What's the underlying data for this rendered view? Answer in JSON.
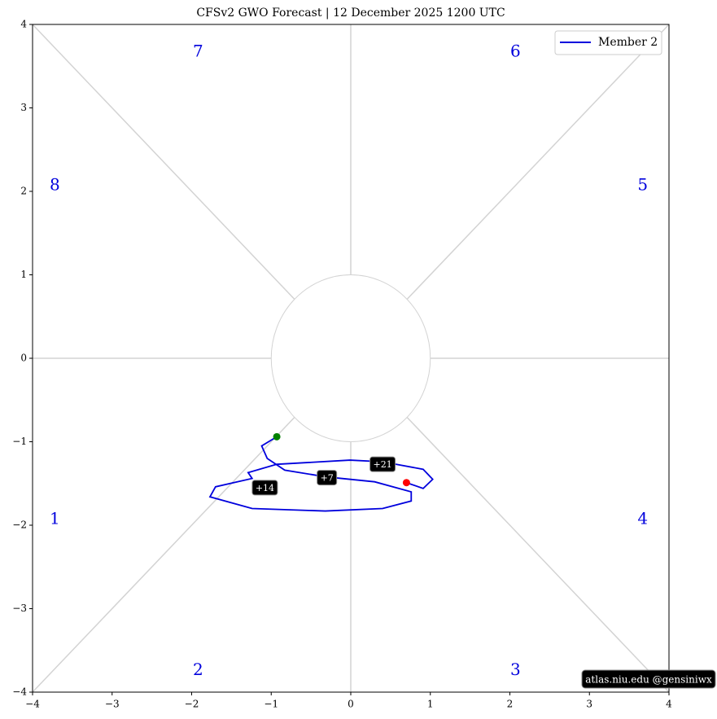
{
  "chart_data": {
    "type": "line",
    "title": "CFSv2 GWO Forecast   |   12  December  2025 1200 UTC",
    "xlim": [
      -4,
      4
    ],
    "ylim": [
      -4,
      4
    ],
    "xticks": [
      {
        "value": -4,
        "label": "−4"
      },
      {
        "value": -3,
        "label": "−3"
      },
      {
        "value": -2,
        "label": "−2"
      },
      {
        "value": -1,
        "label": "−1"
      },
      0,
      1,
      2,
      3,
      4
    ],
    "yticks": [
      {
        "value": -4,
        "label": "−4"
      },
      {
        "value": -3,
        "label": "−3"
      },
      {
        "value": -2,
        "label": "−2"
      },
      {
        "value": -1,
        "label": "−1"
      },
      0,
      1,
      2,
      3,
      4
    ],
    "legend": "upper right",
    "series": [
      {
        "name": "Member 2",
        "color": "#0000dd",
        "x": [
          -0.93,
          -1.12,
          -1.05,
          -0.83,
          -0.32,
          0.3,
          0.76,
          0.76,
          0.4,
          -0.32,
          -1.24,
          -1.77,
          -1.7,
          -1.24,
          -1.29,
          -0.93,
          -0.01,
          0.4,
          0.91,
          1.03,
          0.91,
          0.7
        ],
        "y": [
          -0.94,
          -1.05,
          -1.2,
          -1.34,
          -1.42,
          -1.48,
          -1.6,
          -1.71,
          -1.8,
          -1.83,
          -1.8,
          -1.66,
          -1.54,
          -1.44,
          -1.37,
          -1.27,
          -1.22,
          -1.24,
          -1.33,
          -1.45,
          -1.56,
          -1.49
        ]
      }
    ],
    "markers": [
      {
        "color": "green",
        "x": -0.93,
        "y": -0.94
      },
      {
        "color": "red",
        "x": 0.7,
        "y": -1.49
      }
    ],
    "annotations": [
      {
        "text": "+7",
        "x": -0.3,
        "y": -1.43
      },
      {
        "text": "+14",
        "x": -1.08,
        "y": -1.55
      },
      {
        "text": "+21",
        "x": 0.4,
        "y": -1.27
      }
    ],
    "phases": [
      {
        "text": "1",
        "x": -3.72,
        "y": -1.93
      },
      {
        "text": "2",
        "x": -1.92,
        "y": -3.74
      },
      {
        "text": "3",
        "x": 2.07,
        "y": -3.74
      },
      {
        "text": "4",
        "x": 3.67,
        "y": -1.93
      },
      {
        "text": "5",
        "x": 3.67,
        "y": 2.07
      },
      {
        "text": "6",
        "x": 2.07,
        "y": 3.67
      },
      {
        "text": "7",
        "x": -1.92,
        "y": 3.67
      },
      {
        "text": "8",
        "x": -3.72,
        "y": 2.07
      }
    ],
    "watermark": "atlas.niu.edu  @gensiniwx"
  }
}
